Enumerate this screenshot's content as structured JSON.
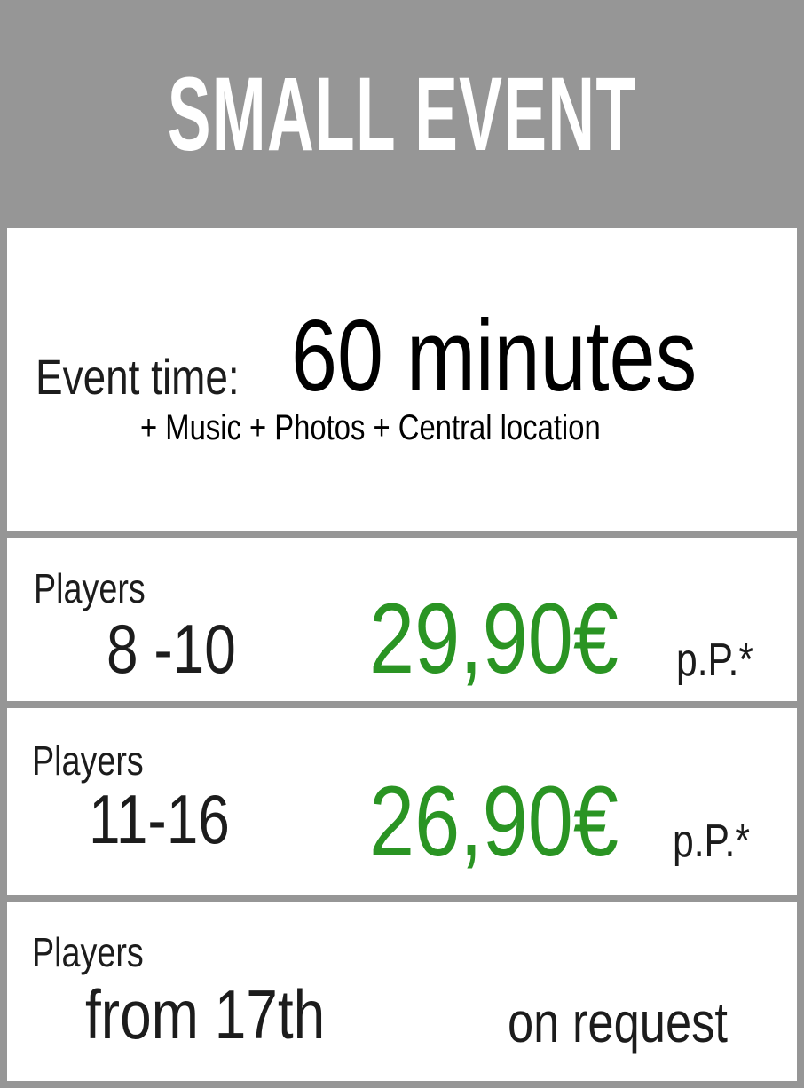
{
  "header": {
    "title": "SMALL EVENT"
  },
  "event": {
    "label": "Event time:",
    "duration": "60 minutes",
    "extras": "+ Music + Photos + Central location"
  },
  "tiers": [
    {
      "label": "Players",
      "range": "8 -10",
      "price": "29,90€",
      "unit": "p.P.*"
    },
    {
      "label": "Players",
      "range": "11-16",
      "price": "26,90€",
      "unit": "p.P.*"
    },
    {
      "label": "Players",
      "range": "from 17th",
      "price": "on request"
    }
  ],
  "colors": {
    "background": "#969696",
    "panel": "#ffffff",
    "price": "#2a9423",
    "text": "#1c1c1c"
  }
}
